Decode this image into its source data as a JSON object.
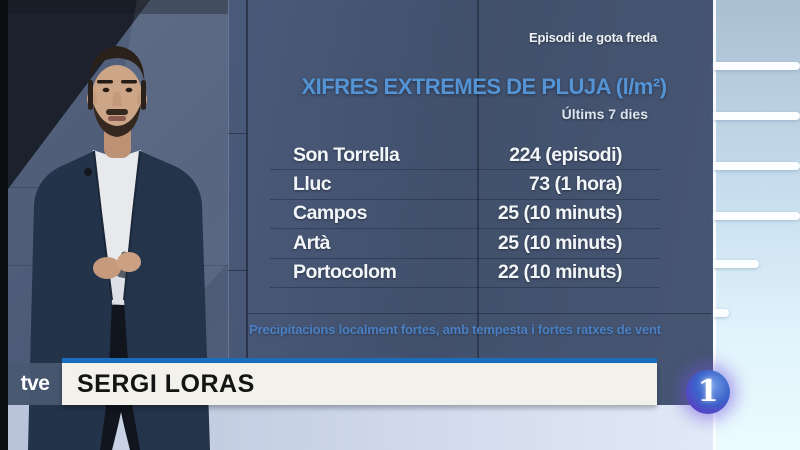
{
  "broadcast": {
    "network_logo": "tve",
    "channel_number": "1",
    "presenter_name": "SERGI LORAS"
  },
  "screen": {
    "event_label": "Episodi de gota freda",
    "title": "XIFRES EXTREMES DE PLUJA (l/m²)",
    "period_label": "Últims 7 dies",
    "rows": [
      {
        "location": "Son Torrella",
        "display": "224 (episodi)"
      },
      {
        "location": "Lluc",
        "display": "73 (1 hora)"
      },
      {
        "location": "Campos",
        "display": "25 (10 minuts)"
      },
      {
        "location": "Artà",
        "display": "25 (10 minuts)"
      },
      {
        "location": "Portocolom",
        "display": "22 (10 minuts)"
      }
    ],
    "footnote": "Precipitacions localment fortes, amb tempesta i fortes ratxes de vent"
  },
  "chart_data": {
    "type": "table",
    "title": "XIFRES EXTREMES DE PLUJA (l/m²)",
    "subtitle": "Últims 7 dies",
    "context_label": "Episodi de gota freda",
    "unit": "l/m²",
    "rows": [
      {
        "location": "Son Torrella",
        "value": 224,
        "qualifier": "episodi"
      },
      {
        "location": "Lluc",
        "value": 73,
        "qualifier": "1 hora"
      },
      {
        "location": "Campos",
        "value": 25,
        "qualifier": "10 minuts"
      },
      {
        "location": "Artà",
        "value": 25,
        "qualifier": "10 minuts"
      },
      {
        "location": "Portocolom",
        "value": 22,
        "qualifier": "10 minuts"
      }
    ],
    "note": "Precipitacions localment fortes, amb tempesta i fortes ratxes de vent"
  },
  "colors": {
    "title_blue": "#5494d4",
    "footnote_blue": "#4a80c3",
    "banner_blue": "#1a6ebd",
    "screen_bg": "#44536e",
    "banner_bg": "#f2f1eb",
    "badge_blue": "#3b63c9",
    "badge_purple": "#5b3fc4"
  }
}
